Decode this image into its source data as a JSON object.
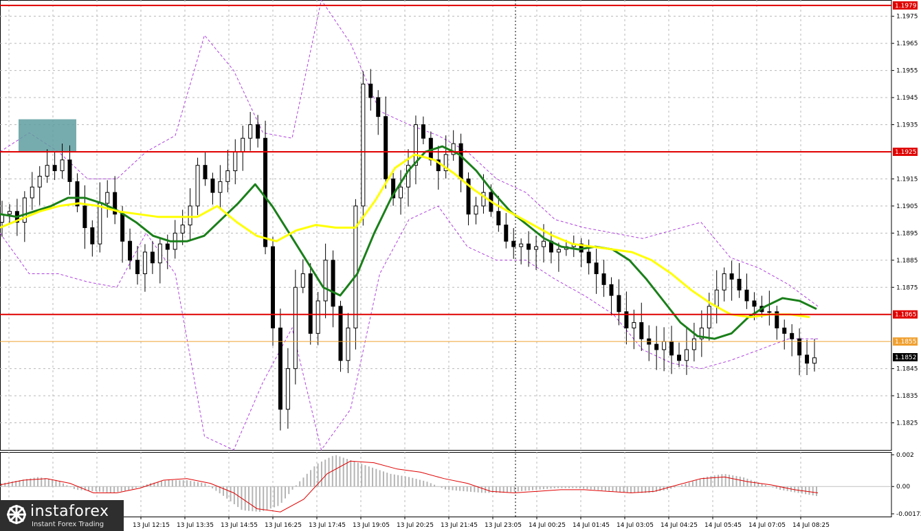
{
  "chart_data": [
    {
      "type": "candlestick",
      "panel": "price",
      "y_range": [
        1.1815,
        1.1981
      ],
      "grid": true,
      "y_ticks": [
        "1.1975",
        "1.1965",
        "1.1955",
        "1.1945",
        "1.1935",
        "1.1915",
        "1.1905",
        "1.1895",
        "1.1885",
        "1.1875",
        "1.1845",
        "1.1835",
        "1.1825"
      ],
      "x_ticks": [
        "13 Jul 12:15",
        "13 Jul 13:35",
        "13 Jul 14:55",
        "13 Jul 16:25",
        "13 Jul 17:45",
        "13 Jul 19:05",
        "13 Jul 20:25",
        "13 Jul 21:45",
        "13 Jul 23:05",
        "14 Jul 00:25",
        "14 Jul 01:45",
        "14 Jul 03:05",
        "14 Jul 04:25",
        "14 Jul 05:45",
        "14 Jul 07:05",
        "14 Jul 08:25"
      ],
      "horizontal_levels": [
        {
          "value": 1.1979,
          "label": "1.1979",
          "color": "#e00000"
        },
        {
          "value": 1.1925,
          "label": "1.1925",
          "color": "#e00000"
        },
        {
          "value": 1.1865,
          "label": "1.1865",
          "color": "#e00000"
        },
        {
          "value": 1.1855,
          "label": "1.1855",
          "color": "#f0a030"
        }
      ],
      "current_price": {
        "value": 1.1852,
        "label": "1.1852"
      },
      "highlight_zone": {
        "y_range": [
          1.1925,
          1.1937
        ],
        "color": "#5f9ea0"
      },
      "close_series": [
        1.1902,
        1.1903,
        1.1899,
        1.1908,
        1.1912,
        1.1916,
        1.192,
        1.1918,
        1.1922,
        1.1914,
        1.1905,
        1.1897,
        1.1891,
        1.1906,
        1.191,
        1.1902,
        1.1892,
        1.1885,
        1.188,
        1.1888,
        1.1884,
        1.1891,
        1.1889,
        1.1895,
        1.1898,
        1.1905,
        1.192,
        1.1915,
        1.191,
        1.1914,
        1.1918,
        1.1925,
        1.193,
        1.1935,
        1.193,
        1.189,
        1.186,
        1.183,
        1.1845,
        1.1875,
        1.188,
        1.1858,
        1.187,
        1.1885,
        1.1868,
        1.1848,
        1.186,
        1.1905,
        1.195,
        1.1945,
        1.1938,
        1.1915,
        1.1908,
        1.1912,
        1.192,
        1.1935,
        1.193,
        1.1922,
        1.1918,
        1.1924,
        1.1928,
        1.1915,
        1.1902,
        1.1905,
        1.191,
        1.1903,
        1.1898,
        1.1892,
        1.189,
        1.1891,
        1.1889,
        1.189,
        1.1892,
        1.1888,
        1.1889,
        1.189,
        1.1891,
        1.1888,
        1.1884,
        1.188,
        1.1876,
        1.1872,
        1.1866,
        1.186,
        1.1862,
        1.1856,
        1.1854,
        1.1852,
        1.1855,
        1.185,
        1.1848,
        1.1852,
        1.1856,
        1.186,
        1.1868,
        1.1874,
        1.188,
        1.1878,
        1.1874,
        1.187,
        1.1868,
        1.1866,
        1.1866,
        1.186,
        1.1858,
        1.1856,
        1.185,
        1.1847,
        1.1849
      ],
      "indicators": [
        {
          "type": "moving_average",
          "color": "#1a7f1a",
          "values": [
            1.1902,
            1.1901,
            1.1903,
            1.1905,
            1.1908,
            1.1908,
            1.1906,
            1.1903,
            1.1899,
            1.1894,
            1.1892,
            1.1892,
            1.1894,
            1.19,
            1.1906,
            1.1913,
            1.1905,
            1.1895,
            1.1885,
            1.1875,
            1.1872,
            1.188,
            1.1895,
            1.1908,
            1.1918,
            1.1925,
            1.1927,
            1.1924,
            1.1918,
            1.191,
            1.1903,
            1.1898,
            1.1893,
            1.189,
            1.1889,
            1.189,
            1.1889,
            1.1885,
            1.1878,
            1.187,
            1.1862,
            1.1857,
            1.1856,
            1.1858,
            1.1864,
            1.1868,
            1.1871,
            1.187,
            1.1867
          ]
        },
        {
          "type": "moving_average",
          "color": "#ffff00",
          "values": [
            1.1897,
            1.19,
            1.1903,
            1.1905,
            1.1906,
            1.1905,
            1.1903,
            1.1902,
            1.1901,
            1.1901,
            1.1901,
            1.1905,
            1.1899,
            1.1894,
            1.1892,
            1.1896,
            1.1898,
            1.1897,
            1.1897,
            1.1907,
            1.1919,
            1.1924,
            1.1922,
            1.1917,
            1.1911,
            1.1906,
            1.1902,
            1.1898,
            1.1894,
            1.1891,
            1.189,
            1.1889,
            1.1888,
            1.1885,
            1.188,
            1.1874,
            1.1869,
            1.1865,
            1.1864,
            1.1865,
            1.1865,
            1.1864
          ]
        },
        {
          "type": "envelope_upper",
          "color": "#b040e0",
          "values": [
            1.1925,
            1.1932,
            1.1925,
            1.1915,
            1.1915,
            1.1925,
            1.1931,
            1.1968,
            1.1955,
            1.1932,
            1.193,
            1.1981,
            1.1965,
            1.194,
            1.1935,
            1.1931,
            1.1925,
            1.1915,
            1.191,
            1.19,
            1.1897,
            1.1895,
            1.1893,
            1.1896,
            1.1899,
            1.1886,
            1.1882,
            1.1876,
            1.1868
          ]
        },
        {
          "type": "envelope_lower",
          "color": "#b040e0",
          "values": [
            1.1895,
            1.188,
            1.188,
            1.1877,
            1.1875,
            1.1895,
            1.188,
            1.182,
            1.1815,
            1.184,
            1.186,
            1.1815,
            1.183,
            1.188,
            1.19,
            1.1905,
            1.189,
            1.1885,
            1.1885,
            1.1878,
            1.1872,
            1.1865,
            1.1852,
            1.1847,
            1.1845,
            1.1848,
            1.1852,
            1.1856,
            1.1856
          ]
        }
      ]
    },
    {
      "type": "histogram",
      "panel": "oscillator",
      "y_range": [
        -0.00172,
        0.002
      ],
      "y_ticks": [
        "0.002",
        "0.00",
        "-0.00172"
      ],
      "values": [
        0.0002,
        0.0004,
        0.0006,
        0.0004,
        -0.0002,
        -0.0003,
        -0.0004,
        -0.0002,
        0.0002,
        0.0004,
        0.0004,
        0.0002,
        -0.0006,
        -0.0015,
        -0.0016,
        -0.0012,
        0.0002,
        0.0014,
        0.002,
        0.0016,
        0.0012,
        0.0008,
        0.0006,
        0.0003,
        -0.0002,
        -0.0003,
        -0.0004,
        -0.0004,
        -0.0003,
        -0.0002,
        -0.0001,
        -0.0001,
        -0.0002,
        -0.0003,
        -0.0004,
        -0.0004,
        -0.0002,
        0.0002,
        0.0006,
        0.0008,
        0.0006,
        0.0002,
        -0.0002,
        -0.0004,
        -0.0006
      ],
      "signal_color": "#e00000",
      "signal": [
        0.0001,
        0.0004,
        0.0005,
        0.0002,
        -0.0004,
        -0.0004,
        -0.0001,
        0.0004,
        0.0005,
        0.0002,
        -0.0004,
        -0.0014,
        -0.0016,
        -0.0008,
        0.0008,
        0.0016,
        0.0015,
        0.0011,
        0.0009,
        0.0005,
        0.0002,
        -0.0003,
        -0.0004,
        -0.0003,
        -0.0002,
        -0.0002,
        -0.0003,
        -0.0004,
        -0.0003,
        0.0001,
        0.0005,
        0.0006,
        0.0003,
        0.0001,
        -0.0002,
        -0.0004
      ]
    }
  ],
  "logo": {
    "name": "instaforex",
    "tagline": "Instant Forex Trading"
  }
}
